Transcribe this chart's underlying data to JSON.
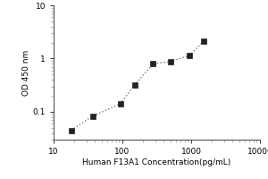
{
  "title": "",
  "xlabel": "Human F13A1 Concentration(pg/mL)",
  "ylabel": "OD 450 nm",
  "x_data": [
    18,
    37,
    93,
    150,
    280,
    500,
    950,
    1500
  ],
  "y_data": [
    0.045,
    0.083,
    0.14,
    0.32,
    0.8,
    0.88,
    1.15,
    2.1
  ],
  "xlim": [
    10,
    10000
  ],
  "ylim": [
    0.03,
    10
  ],
  "x_ticks": [
    10,
    100,
    1000,
    10000
  ],
  "x_tick_labels": [
    "10",
    "100",
    "1000",
    "10000"
  ],
  "y_ticks": [
    0.1,
    1,
    10
  ],
  "y_tick_labels": [
    "0.1",
    "1",
    "10"
  ],
  "marker": "s",
  "marker_color": "#222222",
  "marker_size": 4,
  "line_style": ":",
  "line_color": "#777777",
  "line_width": 1.0,
  "background_color": "#ffffff",
  "xlabel_fontsize": 6.5,
  "ylabel_fontsize": 6.5,
  "tick_fontsize": 6.5,
  "fig_width": 3.0,
  "fig_height": 2.0,
  "dpi": 100
}
